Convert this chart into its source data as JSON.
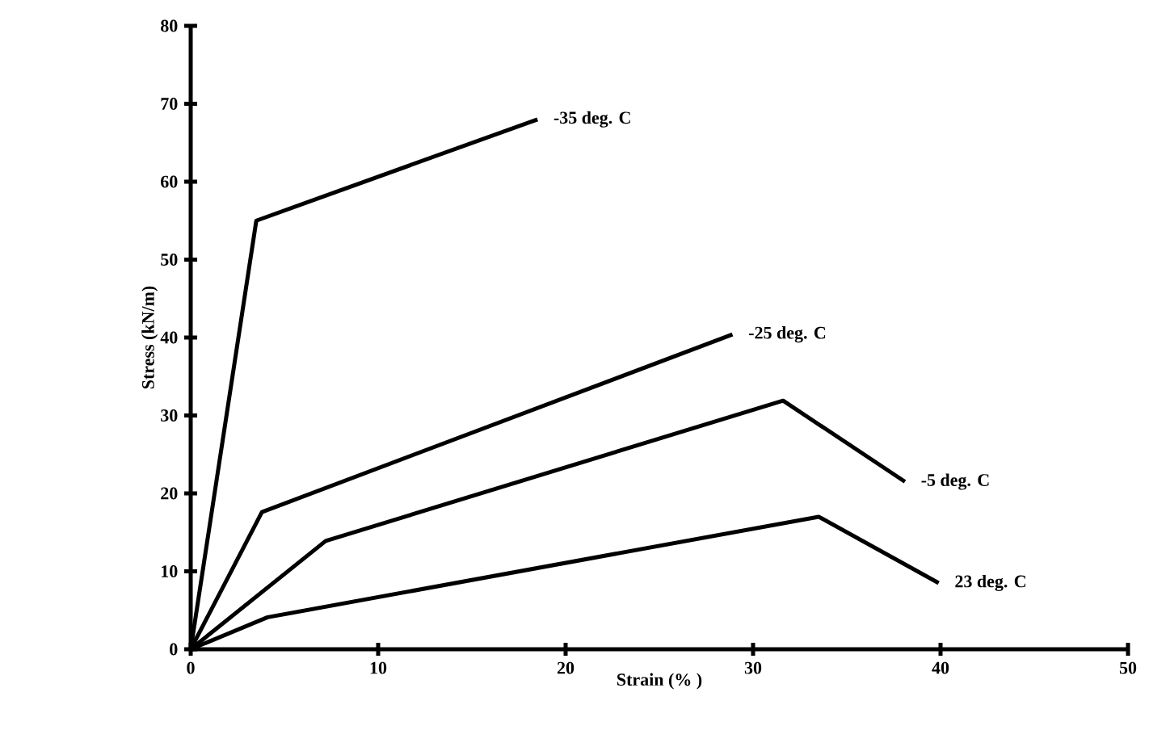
{
  "chart_data": {
    "type": "line",
    "xlabel": "Strain (% )",
    "ylabel": "Stress (kN/m)",
    "xlim": [
      0,
      50
    ],
    "ylim": [
      0,
      80
    ],
    "xticks": [
      0,
      10,
      20,
      30,
      40,
      50
    ],
    "yticks": [
      0,
      10,
      20,
      30,
      40,
      50,
      60,
      70,
      80
    ],
    "grid": false,
    "legend": false,
    "series": [
      {
        "name": "-35 deg. C",
        "color": "#000000",
        "x": [
          0,
          3.5,
          18.5
        ],
        "values": [
          0,
          55,
          68
        ]
      },
      {
        "name": "-25 deg. C",
        "color": "#000000",
        "x": [
          0,
          3.8,
          28.9
        ],
        "values": [
          0,
          17.6,
          40.4
        ]
      },
      {
        "name": "-5 deg. C",
        "color": "#000000",
        "x": [
          0,
          7.2,
          31.6,
          38.1
        ],
        "values": [
          0,
          13.9,
          31.9,
          21.5
        ]
      },
      {
        "name": "23 deg. C",
        "color": "#000000",
        "x": [
          0,
          4.1,
          33.5,
          39.9
        ],
        "values": [
          0,
          4.1,
          17,
          8.5
        ]
      }
    ]
  }
}
